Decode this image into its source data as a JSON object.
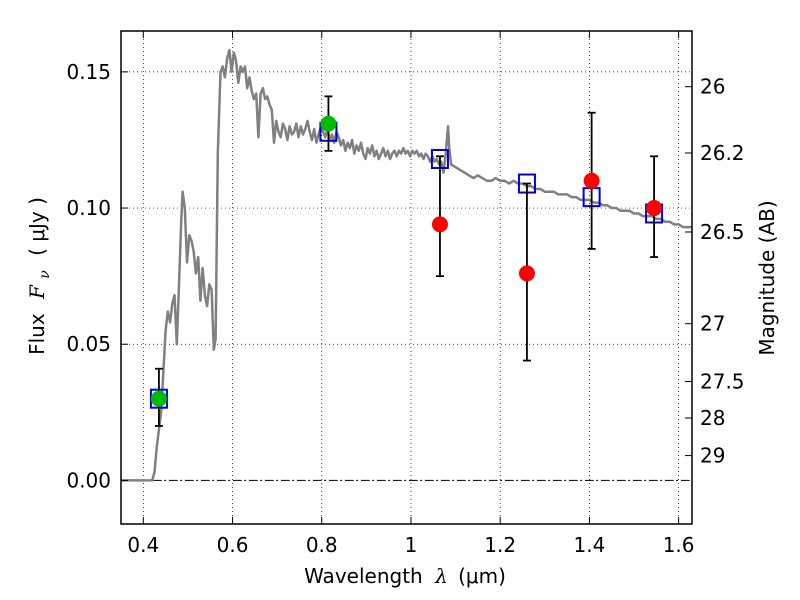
{
  "chart_data": {
    "type": "scatter",
    "xlabel": "Wavelength",
    "xlabel_symbol": "λ",
    "xlabel_unit": "(μm)",
    "ylabel": "Flux",
    "ylabel_symbol": "F",
    "ylabel_symbol_sub": "ν",
    "ylabel_unit": "( μJy )",
    "y2label": "Magnitude (AB)",
    "xlim": [
      0.35,
      1.63
    ],
    "ylim": [
      -0.016,
      0.165
    ],
    "x_ticks": [
      0.4,
      0.6,
      0.8,
      1.0,
      1.2,
      1.4,
      1.6
    ],
    "x_tick_labels": [
      "0.4",
      "0.6",
      "0.8",
      "1",
      "1.2",
      "1.4",
      "1.6"
    ],
    "y_ticks": [
      0.0,
      0.05,
      0.1,
      0.15
    ],
    "y_tick_labels": [
      "0.00",
      "0.05",
      "0.10",
      "0.15"
    ],
    "y2_ticks": [
      26,
      26.2,
      26.5,
      27,
      27.5,
      28,
      29
    ],
    "y2_tick_labels": [
      "26",
      "26.2",
      "26.5",
      "27",
      "27.5",
      "28",
      "29"
    ],
    "grid": true,
    "zero_line": true,
    "colors": {
      "model": "#808080",
      "model_points": "#0000dd",
      "detected": "#00bb00",
      "measured": "#ff0000",
      "errorbar": "#000000"
    },
    "series": [
      {
        "kind": "line",
        "points": [
          [
            0.35,
            0.0
          ],
          [
            0.42,
            0.0
          ],
          [
            0.425,
            0.003
          ],
          [
            0.43,
            0.012
          ],
          [
            0.44,
            0.025
          ],
          [
            0.445,
            0.04
          ],
          [
            0.45,
            0.055
          ],
          [
            0.455,
            0.062
          ],
          [
            0.46,
            0.058
          ],
          [
            0.465,
            0.065
          ],
          [
            0.47,
            0.068
          ],
          [
            0.475,
            0.05
          ],
          [
            0.48,
            0.072
          ],
          [
            0.485,
            0.095
          ],
          [
            0.488,
            0.106
          ],
          [
            0.493,
            0.1
          ],
          [
            0.498,
            0.08
          ],
          [
            0.503,
            0.09
          ],
          [
            0.508,
            0.088
          ],
          [
            0.513,
            0.084
          ],
          [
            0.518,
            0.076
          ],
          [
            0.523,
            0.082
          ],
          [
            0.528,
            0.066
          ],
          [
            0.533,
            0.078
          ],
          [
            0.538,
            0.068
          ],
          [
            0.543,
            0.064
          ],
          [
            0.548,
            0.072
          ],
          [
            0.553,
            0.07
          ],
          [
            0.558,
            0.048
          ],
          [
            0.562,
            0.052
          ],
          [
            0.567,
            0.12
          ],
          [
            0.573,
            0.15
          ],
          [
            0.578,
            0.152
          ],
          [
            0.583,
            0.148
          ],
          [
            0.588,
            0.155
          ],
          [
            0.593,
            0.158
          ],
          [
            0.598,
            0.15
          ],
          [
            0.603,
            0.157
          ],
          [
            0.608,
            0.154
          ],
          [
            0.613,
            0.146
          ],
          [
            0.618,
            0.152
          ],
          [
            0.623,
            0.15
          ],
          [
            0.628,
            0.152
          ],
          [
            0.633,
            0.144
          ],
          [
            0.638,
            0.148
          ],
          [
            0.643,
            0.143
          ],
          [
            0.648,
            0.14
          ],
          [
            0.653,
            0.142
          ],
          [
            0.658,
            0.126
          ],
          [
            0.663,
            0.142
          ],
          [
            0.668,
            0.144
          ],
          [
            0.673,
            0.14
          ],
          [
            0.678,
            0.141
          ],
          [
            0.683,
            0.138
          ],
          [
            0.688,
            0.136
          ],
          [
            0.693,
            0.124
          ],
          [
            0.698,
            0.132
          ],
          [
            0.703,
            0.128
          ],
          [
            0.708,
            0.126
          ],
          [
            0.713,
            0.131
          ],
          [
            0.718,
            0.129
          ],
          [
            0.723,
            0.125
          ],
          [
            0.728,
            0.13
          ],
          [
            0.733,
            0.127
          ],
          [
            0.738,
            0.128
          ],
          [
            0.743,
            0.131
          ],
          [
            0.748,
            0.126
          ],
          [
            0.753,
            0.13
          ],
          [
            0.758,
            0.127
          ],
          [
            0.763,
            0.129
          ],
          [
            0.768,
            0.132
          ],
          [
            0.773,
            0.128
          ],
          [
            0.778,
            0.125
          ],
          [
            0.783,
            0.129
          ],
          [
            0.788,
            0.124
          ],
          [
            0.793,
            0.127
          ],
          [
            0.798,
            0.13
          ],
          [
            0.803,
            0.128
          ],
          [
            0.808,
            0.126
          ],
          [
            0.813,
            0.129
          ],
          [
            0.818,
            0.125
          ],
          [
            0.823,
            0.127
          ],
          [
            0.828,
            0.124
          ],
          [
            0.833,
            0.128
          ],
          [
            0.838,
            0.126
          ],
          [
            0.843,
            0.123
          ],
          [
            0.848,
            0.125
          ],
          [
            0.853,
            0.121
          ],
          [
            0.858,
            0.124
          ],
          [
            0.863,
            0.122
          ],
          [
            0.868,
            0.125
          ],
          [
            0.873,
            0.12
          ],
          [
            0.878,
            0.123
          ],
          [
            0.883,
            0.121
          ],
          [
            0.888,
            0.124
          ],
          [
            0.893,
            0.12
          ],
          [
            0.898,
            0.118
          ],
          [
            0.903,
            0.122
          ],
          [
            0.908,
            0.12
          ],
          [
            0.913,
            0.123
          ],
          [
            0.918,
            0.119
          ],
          [
            0.923,
            0.121
          ],
          [
            0.928,
            0.118
          ],
          [
            0.933,
            0.12
          ],
          [
            0.938,
            0.122
          ],
          [
            0.943,
            0.119
          ],
          [
            0.948,
            0.121
          ],
          [
            0.953,
            0.118
          ],
          [
            0.958,
            0.12
          ],
          [
            0.963,
            0.121
          ],
          [
            0.968,
            0.119
          ],
          [
            0.973,
            0.121
          ],
          [
            0.978,
            0.12
          ],
          [
            0.983,
            0.122
          ],
          [
            0.988,
            0.12
          ],
          [
            0.993,
            0.121
          ],
          [
            0.998,
            0.119
          ],
          [
            1.003,
            0.121
          ],
          [
            1.008,
            0.12
          ],
          [
            1.013,
            0.121
          ],
          [
            1.018,
            0.119
          ],
          [
            1.023,
            0.12
          ],
          [
            1.028,
            0.118
          ],
          [
            1.033,
            0.12
          ],
          [
            1.038,
            0.119
          ],
          [
            1.043,
            0.117
          ],
          [
            1.048,
            0.119
          ],
          [
            1.053,
            0.117
          ],
          [
            1.058,
            0.118
          ],
          [
            1.063,
            0.116
          ],
          [
            1.068,
            0.117
          ],
          [
            1.073,
            0.113
          ],
          [
            1.078,
            0.12
          ],
          [
            1.083,
            0.13
          ],
          [
            1.086,
            0.122
          ],
          [
            1.09,
            0.116
          ],
          [
            1.1,
            0.115
          ],
          [
            1.11,
            0.114
          ],
          [
            1.12,
            0.113
          ],
          [
            1.13,
            0.112
          ],
          [
            1.14,
            0.111
          ],
          [
            1.15,
            0.112
          ],
          [
            1.16,
            0.111
          ],
          [
            1.17,
            0.11
          ],
          [
            1.18,
            0.11
          ],
          [
            1.19,
            0.111
          ],
          [
            1.2,
            0.11
          ],
          [
            1.21,
            0.11
          ],
          [
            1.22,
            0.109
          ],
          [
            1.23,
            0.11
          ],
          [
            1.24,
            0.109
          ],
          [
            1.25,
            0.109
          ],
          [
            1.26,
            0.108
          ],
          [
            1.27,
            0.108
          ],
          [
            1.28,
            0.107
          ],
          [
            1.29,
            0.107
          ],
          [
            1.3,
            0.106
          ],
          [
            1.31,
            0.106
          ],
          [
            1.32,
            0.106
          ],
          [
            1.33,
            0.105
          ],
          [
            1.34,
            0.105
          ],
          [
            1.35,
            0.105
          ],
          [
            1.36,
            0.104
          ],
          [
            1.37,
            0.104
          ],
          [
            1.38,
            0.103
          ],
          [
            1.39,
            0.103
          ],
          [
            1.4,
            0.103
          ],
          [
            1.41,
            0.102
          ],
          [
            1.42,
            0.102
          ],
          [
            1.43,
            0.101
          ],
          [
            1.44,
            0.101
          ],
          [
            1.45,
            0.1
          ],
          [
            1.46,
            0.1
          ],
          [
            1.47,
            0.099
          ],
          [
            1.48,
            0.099
          ],
          [
            1.49,
            0.099
          ],
          [
            1.5,
            0.098
          ],
          [
            1.51,
            0.098
          ],
          [
            1.52,
            0.097
          ],
          [
            1.53,
            0.097
          ],
          [
            1.54,
            0.097
          ],
          [
            1.55,
            0.096
          ],
          [
            1.56,
            0.096
          ],
          [
            1.57,
            0.095
          ],
          [
            1.58,
            0.095
          ],
          [
            1.59,
            0.094
          ],
          [
            1.6,
            0.094
          ],
          [
            1.61,
            0.093
          ],
          [
            1.62,
            0.093
          ],
          [
            1.63,
            0.093
          ]
        ]
      },
      {
        "kind": "squares",
        "points": [
          [
            0.435,
            0.03
          ],
          [
            0.815,
            0.128
          ],
          [
            1.065,
            0.118
          ],
          [
            1.26,
            0.109
          ],
          [
            1.405,
            0.104
          ],
          [
            1.545,
            0.098
          ]
        ]
      },
      {
        "kind": "errorbars",
        "points": [
          {
            "x": 0.435,
            "y": 0.03,
            "lo": 0.02,
            "hi": 0.041,
            "marker": "green"
          },
          {
            "x": 0.815,
            "y": 0.131,
            "lo": 0.121,
            "hi": 0.141,
            "marker": "green"
          },
          {
            "x": 1.065,
            "y": 0.094,
            "lo": 0.075,
            "hi": 0.119,
            "marker": "red"
          },
          {
            "x": 1.26,
            "y": 0.076,
            "lo": 0.044,
            "hi": 0.109,
            "marker": "red"
          },
          {
            "x": 1.405,
            "y": 0.11,
            "lo": 0.085,
            "hi": 0.135,
            "marker": "red"
          },
          {
            "x": 1.545,
            "y": 0.1,
            "lo": 0.082,
            "hi": 0.119,
            "marker": "red"
          }
        ]
      }
    ]
  }
}
